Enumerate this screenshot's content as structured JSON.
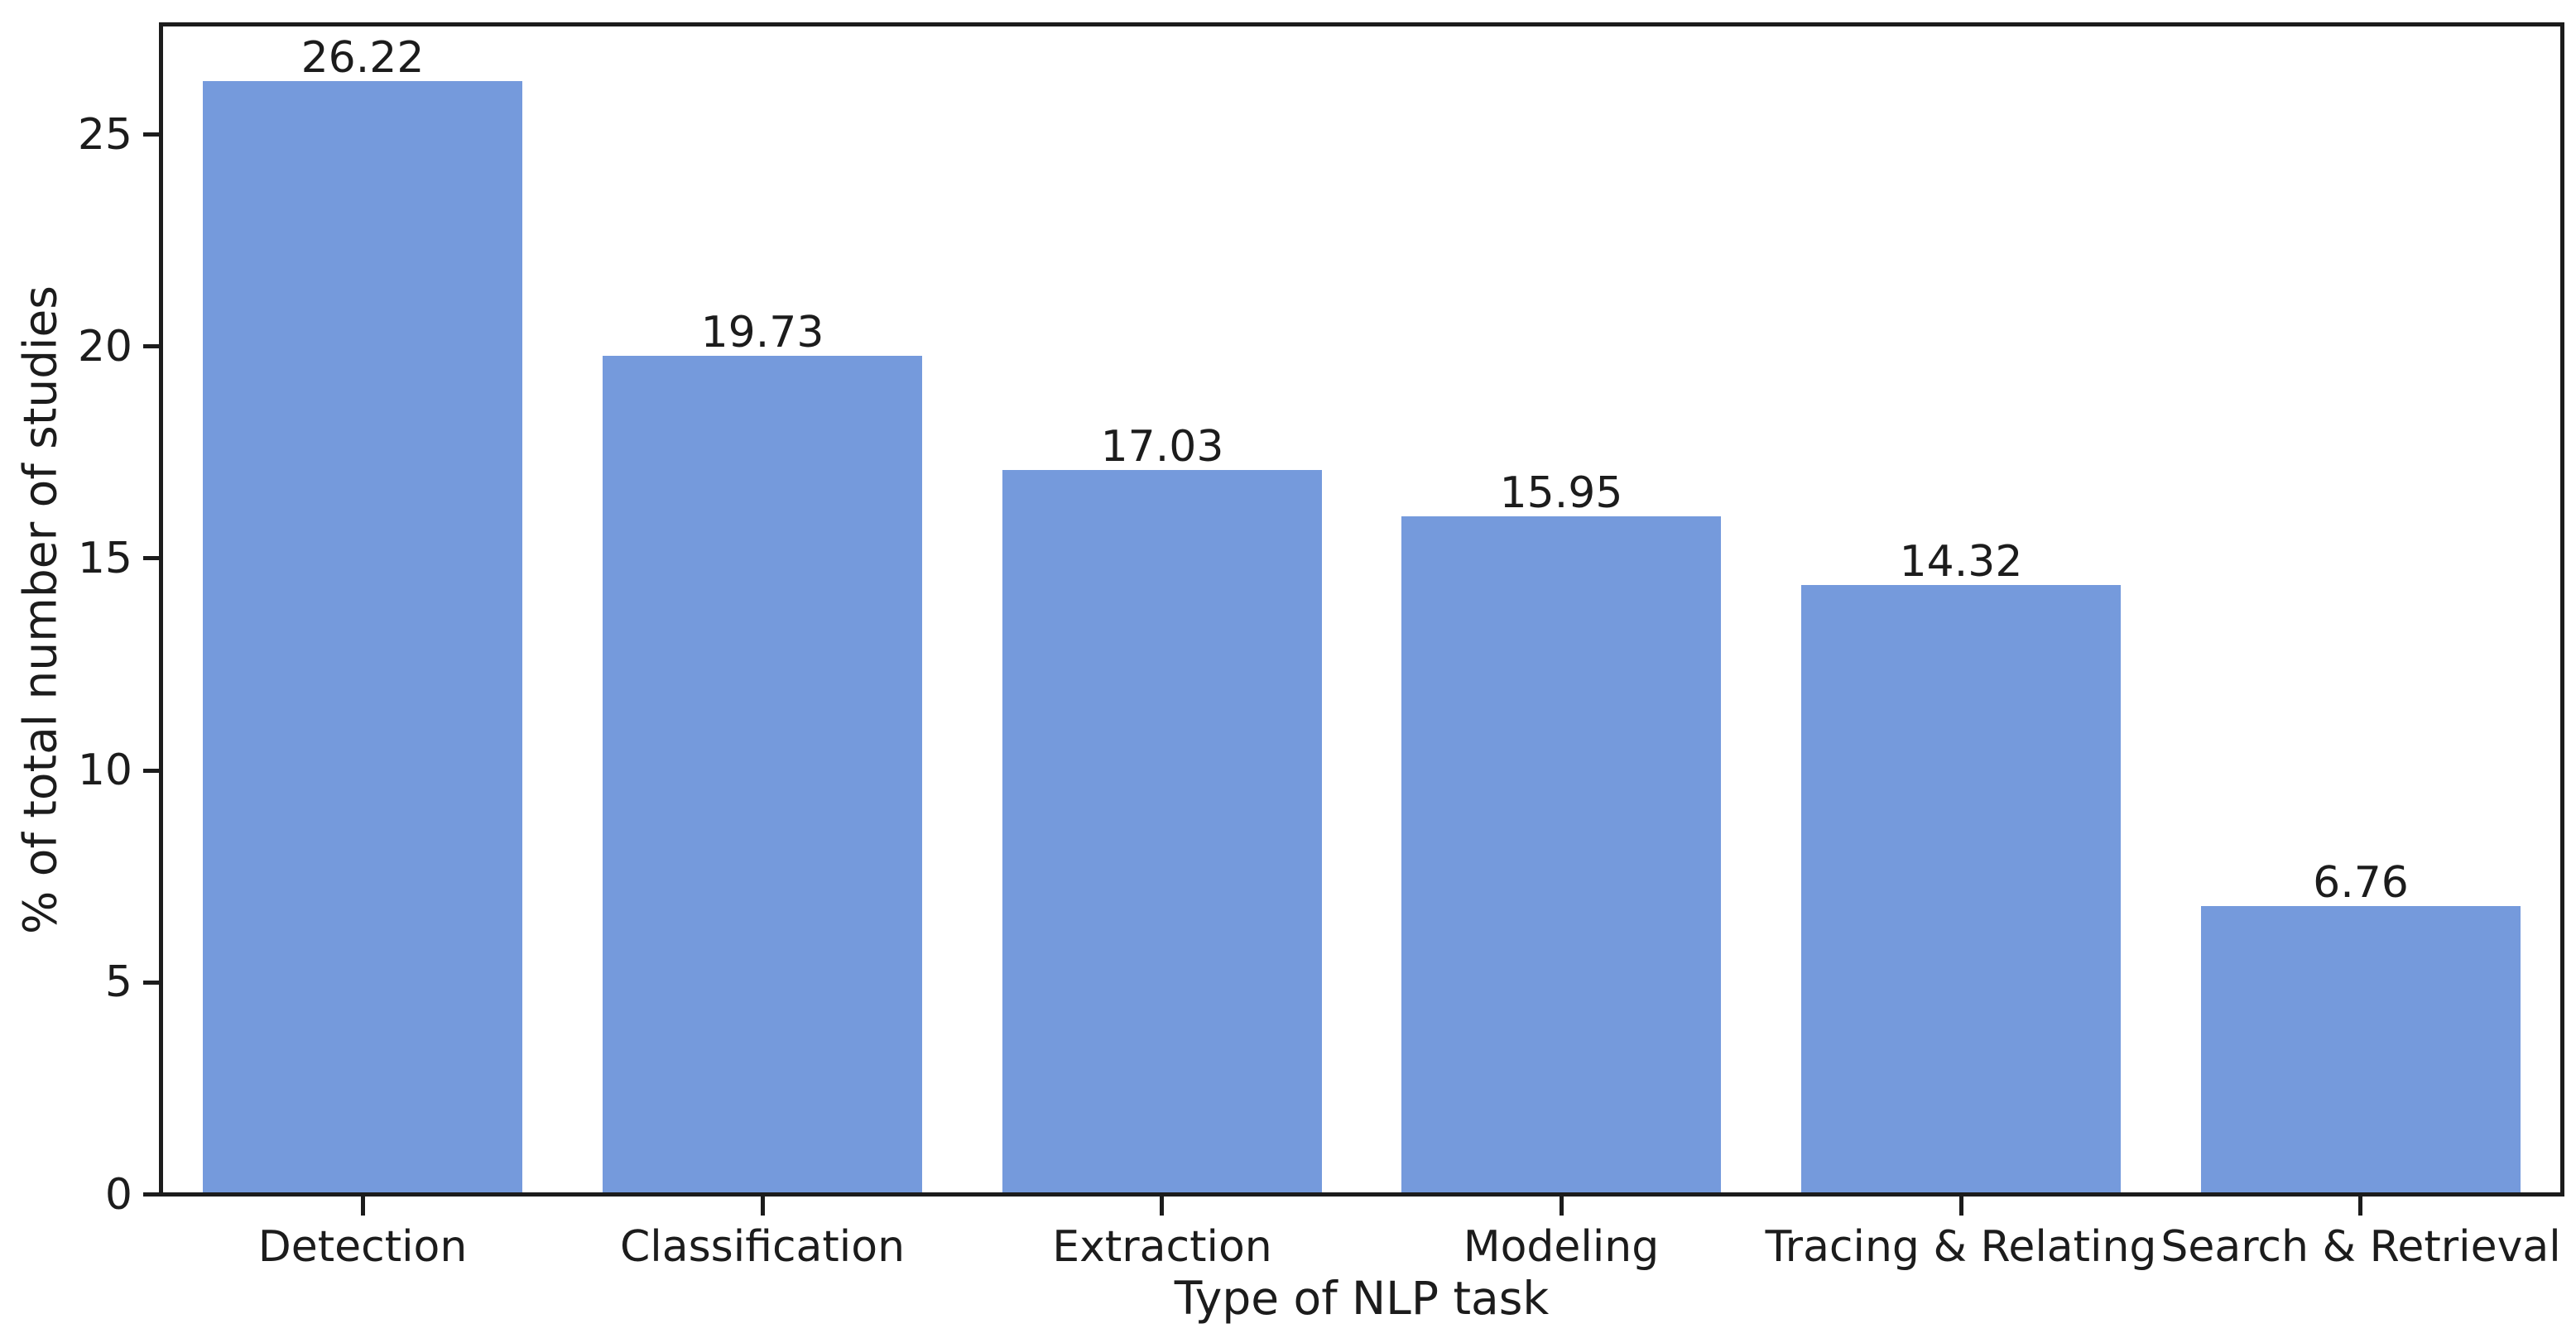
{
  "chart_data": {
    "type": "bar",
    "title": "",
    "xlabel": "Type of NLP task",
    "ylabel": "% of total number of studies",
    "categories": [
      "Detection",
      "Classification",
      "Extraction",
      "Modeling",
      "Tracing & Relating",
      "Search & Retrieval"
    ],
    "values": [
      26.22,
      19.73,
      17.03,
      15.95,
      14.32,
      6.76
    ],
    "value_labels": [
      "26.22",
      "19.73",
      "17.03",
      "15.95",
      "14.32",
      "6.76"
    ],
    "yticks": [
      0,
      5,
      10,
      15,
      20,
      25
    ],
    "ylim": [
      0,
      27.5
    ],
    "grid": false,
    "legend": "none",
    "bar_width_fraction": 0.8,
    "bar_color": "#759ADC",
    "axis_color": "#1c1c1c",
    "text_color": "#1c1c1c",
    "background_color": "#ffffff"
  }
}
